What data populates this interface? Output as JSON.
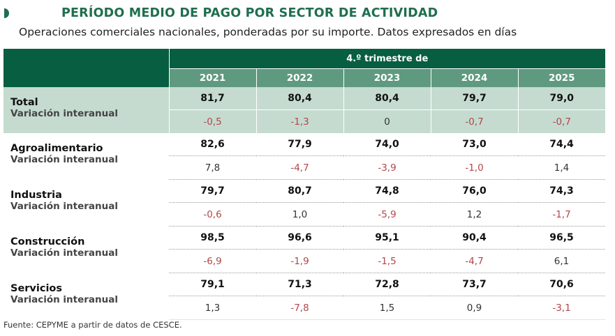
{
  "title": "PERÍODO MEDIO DE PAGO POR SECTOR DE ACTIVIDAD",
  "subtitle": "Operaciones comerciales nacionales, ponderadas por su importe. Datos expresados en días",
  "colors": {
    "brand_green": "#075e40",
    "header_mid": "#5f9a80",
    "total_bg": "#c5dbd0",
    "negative": "#b2464a"
  },
  "chart_data": {
    "type": "table",
    "column_group": "4.º trimestre de",
    "columns": [
      "2021",
      "2022",
      "2023",
      "2024",
      "2025"
    ],
    "variation_label": "Variación interanual",
    "rows": [
      {
        "sector": "Total",
        "values": [
          "81,7",
          "80,4",
          "80,4",
          "79,7",
          "79,0"
        ],
        "variation": [
          "-0,5",
          "-1,3",
          "0",
          "-0,7",
          "-0,7"
        ]
      },
      {
        "sector": "Agroalimentario",
        "values": [
          "82,6",
          "77,9",
          "74,0",
          "73,0",
          "74,4"
        ],
        "variation": [
          "7,8",
          "-4,7",
          "-3,9",
          "-1,0",
          "1,4"
        ]
      },
      {
        "sector": "Industria",
        "values": [
          "79,7",
          "80,7",
          "74,8",
          "76,0",
          "74,3"
        ],
        "variation": [
          "-0,6",
          "1,0",
          "-5,9",
          "1,2",
          "-1,7"
        ]
      },
      {
        "sector": "Construcción",
        "values": [
          "98,5",
          "96,6",
          "95,1",
          "90,4",
          "96,5"
        ],
        "variation": [
          "-6,9",
          "-1,9",
          "-1,5",
          "-4,7",
          "6,1"
        ]
      },
      {
        "sector": "Servicios",
        "values": [
          "79,1",
          "71,3",
          "72,8",
          "73,7",
          "70,6"
        ],
        "variation": [
          "1,3",
          "-7,8",
          "1,5",
          "0,9",
          "-3,1"
        ]
      }
    ]
  },
  "source": "Fuente: CEPYME a partir de datos de CESCE."
}
